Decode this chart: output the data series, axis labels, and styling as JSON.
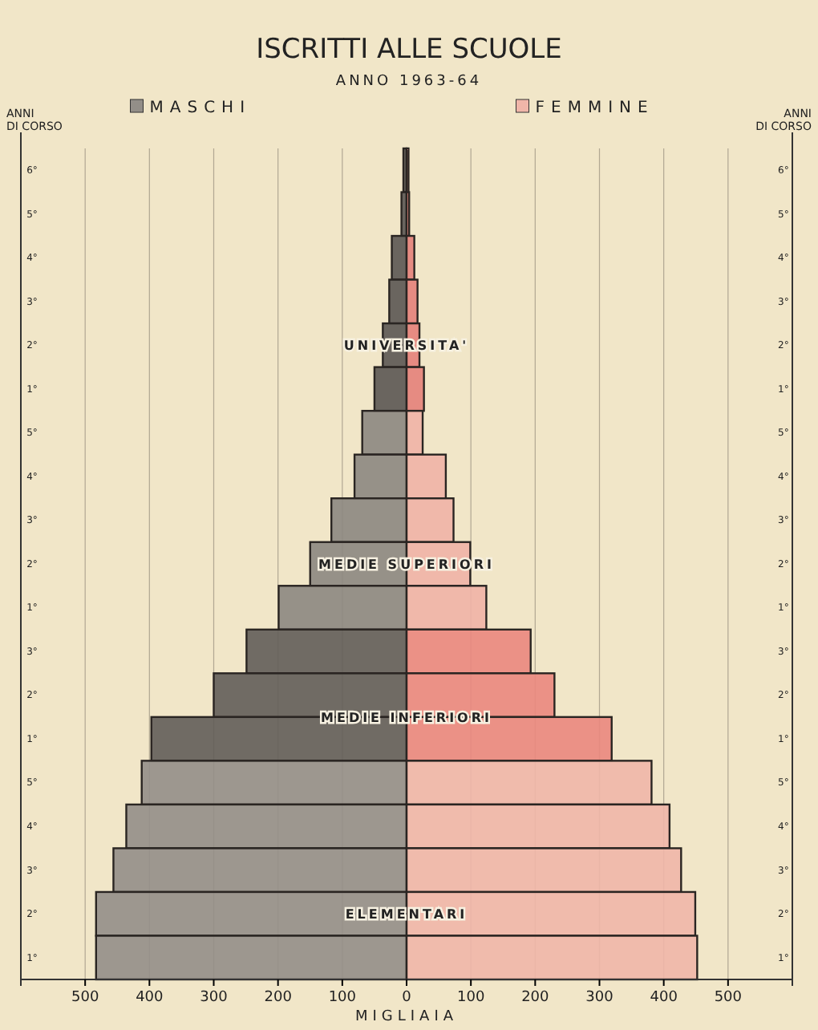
{
  "chart_data": {
    "type": "bar",
    "orientation": "horizontal",
    "stacked": true,
    "title": "ISCRITTI ALLE SCUOLE",
    "subtitle": "ANNO 1963-64",
    "xlabel": "MIGLIAIA",
    "ylabel": "ANNI DI CORSO",
    "y2label": "ANNI DI CORSO",
    "categories": [
      "6°",
      "5°",
      "4°",
      "3°",
      "2°",
      "1°",
      "5°",
      "4°",
      "3°",
      "2°",
      "1°",
      "3°",
      "2°",
      "1°",
      "5°",
      "4°",
      "3°",
      "2°",
      "1°"
    ],
    "series": [
      {
        "name": "MASCHI",
        "colors": [
          "#5b5653",
          "#5b5653",
          "#5b5653",
          "#5b5653",
          "#5b5653",
          "#5b5653",
          "#8c8781",
          "#8c8781",
          "#8c8781",
          "#8c8781",
          "#8c8781",
          "#625d59",
          "#625d59",
          "#625d59",
          "#938e88",
          "#938e88",
          "#938e88",
          "#938e88",
          "#938e88"
        ],
        "values": [
          -5,
          -8,
          -23,
          -27,
          -37,
          -50,
          -69,
          -81,
          -117,
          -150,
          -199,
          -249,
          -300,
          -397,
          -412,
          -436,
          -456,
          -483,
          -483
        ]
      },
      {
        "name": "FEMMINE",
        "colors": [
          "#e4817a",
          "#e4817a",
          "#e4817a",
          "#e4817a",
          "#e4817a",
          "#e4817a",
          "#efb3a6",
          "#efb3a6",
          "#efb3a6",
          "#efb3a6",
          "#efb3a6",
          "#ea877e",
          "#ea877e",
          "#ea877e",
          "#f0b6a9",
          "#f0b6a9",
          "#f0b6a9",
          "#f0b6a9",
          "#f0b6a9"
        ],
        "values": [
          3,
          4,
          12,
          17,
          20,
          27,
          25,
          61,
          73,
          99,
          124,
          193,
          230,
          319,
          381,
          409,
          427,
          449,
          452
        ]
      }
    ],
    "annotations": [
      "UNIVERSITA'",
      "MEDIE SUPERIORI",
      "MEDIE INFERIORI",
      "ELEMENTARI"
    ],
    "xlim": [
      -600,
      600
    ],
    "xticks": [
      {
        "value": -500,
        "label": "500"
      },
      {
        "value": -400,
        "label": "400"
      },
      {
        "value": -300,
        "label": "300"
      },
      {
        "value": -200,
        "label": "200"
      },
      {
        "value": -100,
        "label": "100"
      },
      0,
      100,
      200,
      300,
      400,
      500
    ],
    "grid": "x",
    "legend": "top"
  }
}
